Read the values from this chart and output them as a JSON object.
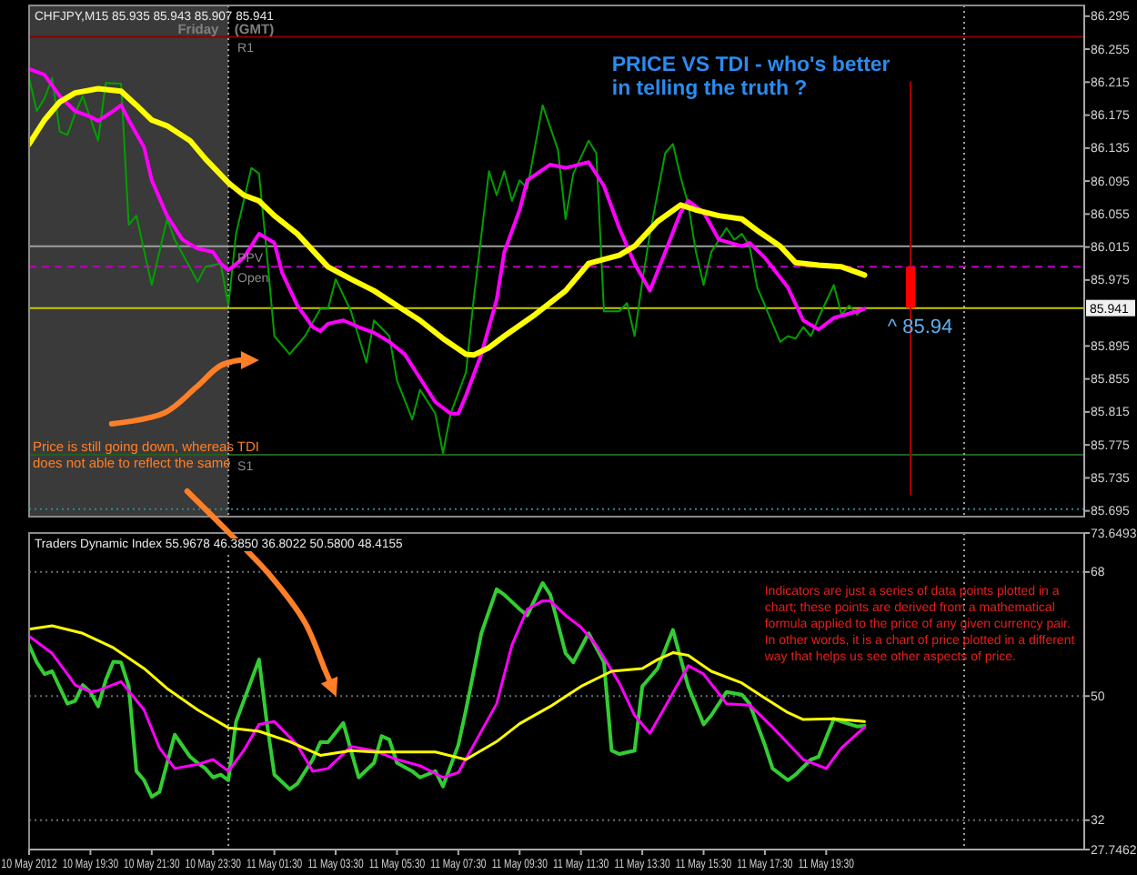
{
  "chart_data": [
    {
      "type": "line",
      "title": "CHFJPY,M15 85.935 85.943 85.907 85.941",
      "xlim": [
        "2012-05-10T17:30",
        "2012-05-12T03:55"
      ],
      "ylim": [
        85.688,
        86.308
      ],
      "yticks": [
        86.295,
        86.255,
        86.215,
        86.175,
        86.135,
        86.095,
        86.055,
        86.015,
        85.975,
        85.895,
        85.855,
        85.815,
        85.775,
        85.735,
        85.695
      ],
      "tick_labels": "y",
      "series": [
        {
          "color": "#00a000",
          "x": [
            "2012-05-10T17:30",
            "2012-05-10T17:45",
            "2012-05-10T18:00",
            "2012-05-10T18:15",
            "2012-05-10T18:30",
            "2012-05-10T18:45",
            "2012-05-10T19:00",
            "2012-05-10T19:15",
            "2012-05-10T19:45",
            "2012-05-10T20:00",
            "2012-05-10T20:30",
            "2012-05-10T20:45",
            "2012-05-10T21:00",
            "2012-05-10T21:30",
            "2012-05-10T22:00",
            "2012-05-10T22:15",
            "2012-05-10T23:00",
            "2012-05-10T23:15",
            "2012-05-10T23:45",
            "2012-05-11T00:00",
            "2012-05-11T00:15",
            "2012-05-11T00:45",
            "2012-05-11T01:00",
            "2012-05-11T01:15",
            "2012-05-11T01:30",
            "2012-05-11T02:00",
            "2012-05-11T02:30",
            "2012-05-11T03:00",
            "2012-05-11T03:15",
            "2012-05-11T03:30",
            "2012-05-11T04:00",
            "2012-05-11T04:30",
            "2012-05-11T04:45",
            "2012-05-11T05:15",
            "2012-05-11T05:30",
            "2012-05-11T06:00",
            "2012-05-11T06:15",
            "2012-05-11T06:45",
            "2012-05-11T07:00",
            "2012-05-11T07:15",
            "2012-05-11T07:45",
            "2012-05-11T08:00",
            "2012-05-11T08:30",
            "2012-05-11T08:45",
            "2012-05-11T09:00",
            "2012-05-11T09:15",
            "2012-05-11T09:30",
            "2012-05-11T09:45",
            "2012-05-11T10:15",
            "2012-05-11T10:45",
            "2012-05-11T11:00",
            "2012-05-11T11:15",
            "2012-05-11T11:45",
            "2012-05-11T12:00",
            "2012-05-11T12:15",
            "2012-05-11T12:45",
            "2012-05-11T13:00",
            "2012-05-11T13:15",
            "2012-05-11T13:30",
            "2012-05-11T13:45",
            "2012-05-11T14:15",
            "2012-05-11T14:30",
            "2012-05-11T14:45",
            "2012-05-11T15:00",
            "2012-05-11T15:15",
            "2012-05-11T15:30",
            "2012-05-11T15:45",
            "2012-05-11T16:15",
            "2012-05-11T16:30",
            "2012-05-11T16:45",
            "2012-05-11T17:00",
            "2012-05-11T17:15",
            "2012-05-11T17:30",
            "2012-05-11T18:00",
            "2012-05-11T18:15",
            "2012-05-11T18:30",
            "2012-05-11T18:45",
            "2012-05-11T19:00",
            "2012-05-11T19:15",
            "2012-05-11T19:45",
            "2012-05-11T20:00",
            "2012-05-11T20:15",
            "2012-05-11T20:30",
            "2012-05-11T20:45"
          ],
          "values": [
            86.22,
            86.18,
            86.195,
            86.22,
            86.155,
            86.151,
            86.177,
            86.198,
            86.144,
            86.214,
            86.213,
            86.042,
            86.053,
            85.969,
            86.049,
            86.024,
            85.973,
            85.991,
            85.995,
            85.944,
            86.031,
            86.111,
            86.104,
            86.009,
            85.907,
            85.885,
            85.907,
            85.94,
            85.94,
            85.976,
            85.937,
            85.875,
            85.926,
            85.907,
            85.853,
            85.806,
            85.842,
            85.813,
            85.765,
            85.813,
            85.863,
            85.951,
            86.107,
            86.078,
            86.107,
            86.071,
            86.096,
            86.086,
            86.187,
            86.133,
            86.049,
            86.104,
            86.144,
            86.129,
            85.937,
            85.937,
            85.947,
            85.907,
            85.973,
            86.031,
            86.129,
            86.14,
            86.1,
            86.067,
            86.009,
            85.969,
            86.009,
            86.038,
            86.024,
            86.031,
            86.016,
            85.966,
            85.944,
            85.9,
            85.907,
            85.904,
            85.918,
            85.907,
            85.929,
            85.969,
            85.933,
            85.944,
            85.933,
            85.941
          ]
        },
        {
          "color": "#ff00ff",
          "x": [
            "2012-05-10T17:30",
            "2012-05-10T18:00",
            "2012-05-10T18:30",
            "2012-05-10T19:00",
            "2012-05-10T19:30",
            "2012-05-10T19:45",
            "2012-05-10T20:15",
            "2012-05-10T20:30",
            "2012-05-10T20:45",
            "2012-05-10T21:15",
            "2012-05-10T21:30",
            "2012-05-10T22:00",
            "2012-05-10T22:30",
            "2012-05-10T23:00",
            "2012-05-10T23:30",
            "2012-05-10T23:45",
            "2012-05-11T00:00",
            "2012-05-11T00:30",
            "2012-05-11T01:00",
            "2012-05-11T01:30",
            "2012-05-11T01:45",
            "2012-05-11T02:15",
            "2012-05-11T02:45",
            "2012-05-11T03:00",
            "2012-05-11T03:15",
            "2012-05-11T03:45",
            "2012-05-11T04:15",
            "2012-05-11T04:45",
            "2012-05-11T05:15",
            "2012-05-11T05:45",
            "2012-05-11T06:15",
            "2012-05-11T06:45",
            "2012-05-11T07:15",
            "2012-05-11T07:30",
            "2012-05-11T07:45",
            "2012-05-11T08:15",
            "2012-05-11T08:45",
            "2012-05-11T09:00",
            "2012-05-11T09:30",
            "2012-05-11T09:45",
            "2012-05-11T10:30",
            "2012-05-11T11:00",
            "2012-05-11T11:45",
            "2012-05-11T12:15",
            "2012-05-11T12:45",
            "2012-05-11T13:15",
            "2012-05-11T13:45",
            "2012-05-11T14:15",
            "2012-05-11T14:45",
            "2012-05-11T15:00",
            "2012-05-11T15:30",
            "2012-05-11T16:00",
            "2012-05-11T16:45",
            "2012-05-11T17:00",
            "2012-05-11T17:30",
            "2012-05-11T18:15",
            "2012-05-11T18:45",
            "2012-05-11T19:15",
            "2012-05-11T19:45",
            "2012-05-11T20:30",
            "2012-05-11T20:45"
          ],
          "values": [
            86.231,
            86.224,
            86.198,
            86.18,
            86.173,
            86.168,
            86.18,
            86.187,
            86.169,
            86.136,
            86.096,
            86.053,
            86.024,
            86.013,
            86.009,
            85.995,
            85.987,
            86.002,
            86.031,
            86.02,
            85.984,
            85.944,
            85.918,
            85.913,
            85.922,
            85.926,
            85.918,
            85.911,
            85.9,
            85.885,
            85.856,
            85.827,
            85.813,
            85.813,
            85.835,
            85.885,
            85.951,
            86.009,
            86.06,
            86.096,
            86.115,
            86.111,
            86.118,
            86.089,
            86.038,
            85.995,
            85.962,
            86.009,
            86.057,
            86.071,
            86.057,
            86.024,
            86.016,
            86.02,
            86.002,
            85.966,
            85.926,
            85.915,
            85.929,
            85.937,
            85.94
          ]
        },
        {
          "color": "#ffff00",
          "x": [
            "2012-05-10T17:30",
            "2012-05-10T18:00",
            "2012-05-10T18:30",
            "2012-05-10T19:00",
            "2012-05-10T19:45",
            "2012-05-10T20:30",
            "2012-05-10T21:00",
            "2012-05-10T21:30",
            "2012-05-10T22:00",
            "2012-05-10T22:45",
            "2012-05-10T23:15",
            "2012-05-11T00:00",
            "2012-05-11T00:30",
            "2012-05-11T01:00",
            "2012-05-11T01:30",
            "2012-05-11T02:15",
            "2012-05-11T03:15",
            "2012-05-11T04:00",
            "2012-05-11T04:45",
            "2012-05-11T05:30",
            "2012-05-11T06:15",
            "2012-05-11T07:00",
            "2012-05-11T07:45",
            "2012-05-11T08:00",
            "2012-05-11T08:30",
            "2012-05-11T09:00",
            "2012-05-11T10:00",
            "2012-05-11T11:00",
            "2012-05-11T11:45",
            "2012-05-11T12:45",
            "2012-05-11T13:15",
            "2012-05-11T14:00",
            "2012-05-11T14:45",
            "2012-05-11T15:15",
            "2012-05-11T16:00",
            "2012-05-11T16:45",
            "2012-05-11T17:15",
            "2012-05-11T18:00",
            "2012-05-11T18:30",
            "2012-05-11T19:15",
            "2012-05-11T20:00",
            "2012-05-11T20:45"
          ],
          "values": [
            86.14,
            86.169,
            86.191,
            86.202,
            86.207,
            86.204,
            86.187,
            86.169,
            86.162,
            86.144,
            86.122,
            86.093,
            86.078,
            86.071,
            86.053,
            86.031,
            85.991,
            85.976,
            85.962,
            85.944,
            85.926,
            85.904,
            85.885,
            85.884,
            85.893,
            85.907,
            85.933,
            85.962,
            85.995,
            86.005,
            86.016,
            86.046,
            86.066,
            86.06,
            86.053,
            86.049,
            86.035,
            86.016,
            85.996,
            85.993,
            85.991,
            85.981
          ]
        },
        {
          "type": "candlestick",
          "color": "#ff0000",
          "x": [
            "2012-05-11T22:15"
          ],
          "ohlc": [
            [
              85.991,
              86.216,
              85.714,
              85.941
            ]
          ]
        }
      ],
      "ref_lines": [
        {
          "axis": "y",
          "value": 86.27,
          "label": "R1",
          "color": "#8b0000"
        },
        {
          "axis": "y",
          "value": 86.016,
          "label": "PPV",
          "color": "#a0a0a0"
        },
        {
          "axis": "y",
          "value": 85.991,
          "label": "Open",
          "color": "#c000c0",
          "line_style": "dashed"
        },
        {
          "axis": "y",
          "value": 85.941,
          "label": "85.941",
          "color": "#c8c800"
        },
        {
          "axis": "y",
          "value": 85.763,
          "label": "S1",
          "color": "#1f5f1f"
        },
        {
          "axis": "y",
          "value": 85.697,
          "color": "#2e8b8b",
          "line_style": "dotted"
        },
        {
          "axis": "x",
          "value": "2012-05-11T00:00",
          "color": "#a0a0a0",
          "line_style": "dotted"
        },
        {
          "axis": "x",
          "value": "2012-05-12T00:00",
          "color": "#a0a0a0",
          "line_style": "dotted"
        }
      ],
      "bands": [
        {
          "axis": "x",
          "from": "2012-05-10T17:30",
          "to": "2012-05-11T00:00",
          "color": "#3a3a3a"
        }
      ],
      "annotations": [
        "Friday",
        "(GMT)",
        "PRICE VS TDI - who's better in telling the truth ?",
        {
          "text": "^ 85.94",
          "x": "2012-05-11T21:30",
          "y": 85.94
        },
        "Price is still going down, whereas TDI",
        "does not able to reflect the same"
      ]
    },
    {
      "type": "line",
      "title": "Traders Dynamic Index 55.9678 46.3850 36.8022 50.5800 48.4155",
      "xlim": [
        "2012-05-10T17:30",
        "2012-05-12T03:55"
      ],
      "xticks": [
        {
          "value": "2012-05-10T17:30",
          "label": "10 May 2012"
        },
        {
          "value": "2012-05-10T19:30",
          "label": "10 May 19:30"
        },
        {
          "value": "2012-05-10T21:30",
          "label": "10 May 21:30"
        },
        {
          "value": "2012-05-10T23:30",
          "label": "10 May 23:30"
        },
        {
          "value": "2012-05-11T01:30",
          "label": "11 May 01:30"
        },
        {
          "value": "2012-05-11T03:30",
          "label": "11 May 03:30"
        },
        {
          "value": "2012-05-11T05:30",
          "label": "11 May 05:30"
        },
        {
          "value": "2012-05-11T07:30",
          "label": "11 May 07:30"
        },
        {
          "value": "2012-05-11T09:30",
          "label": "11 May 09:30"
        },
        {
          "value": "2012-05-11T11:30",
          "label": "11 May 11:30"
        },
        {
          "value": "2012-05-11T13:30",
          "label": "11 May 13:30"
        },
        {
          "value": "2012-05-11T15:30",
          "label": "11 May 15:30"
        },
        {
          "value": "2012-05-11T17:30",
          "label": "11 May 17:30"
        },
        {
          "value": "2012-05-11T19:30",
          "label": "11 May 19:30"
        }
      ],
      "ylim": [
        27.7462,
        73.6493
      ],
      "yticks": [
        73.6493,
        68,
        50,
        32,
        27.7462
      ],
      "series": [
        {
          "color": "#32cd32",
          "x": [
            "2012-05-10T17:30",
            "2012-05-10T17:45",
            "2012-05-10T18:00",
            "2012-05-10T18:15",
            "2012-05-10T18:45",
            "2012-05-10T19:00",
            "2012-05-10T19:15",
            "2012-05-10T19:30",
            "2012-05-10T19:45",
            "2012-05-10T20:00",
            "2012-05-10T20:15",
            "2012-05-10T20:30",
            "2012-05-10T20:45",
            "2012-05-10T21:00",
            "2012-05-10T21:15",
            "2012-05-10T21:30",
            "2012-05-10T21:45",
            "2012-05-10T22:15",
            "2012-05-10T22:45",
            "2012-05-10T23:00",
            "2012-05-10T23:15",
            "2012-05-10T23:30",
            "2012-05-10T23:45",
            "2012-05-11T00:00",
            "2012-05-11T00:15",
            "2012-05-11T00:45",
            "2012-05-11T01:00",
            "2012-05-11T01:15",
            "2012-05-11T01:30",
            "2012-05-11T02:00",
            "2012-05-11T02:15",
            "2012-05-11T02:45",
            "2012-05-11T03:00",
            "2012-05-11T03:15",
            "2012-05-11T03:45",
            "2012-05-11T04:00",
            "2012-05-11T04:15",
            "2012-05-11T04:45",
            "2012-05-11T05:00",
            "2012-05-11T05:15",
            "2012-05-11T05:30",
            "2012-05-11T06:00",
            "2012-05-11T06:15",
            "2012-05-11T06:45",
            "2012-05-11T07:00",
            "2012-05-11T07:30",
            "2012-05-11T07:45",
            "2012-05-11T08:15",
            "2012-05-11T08:45",
            "2012-05-11T09:00",
            "2012-05-11T09:30",
            "2012-05-11T09:45",
            "2012-05-11T10:15",
            "2012-05-11T10:30",
            "2012-05-11T11:00",
            "2012-05-11T11:15",
            "2012-05-11T11:30",
            "2012-05-11T11:45",
            "2012-05-11T12:15",
            "2012-05-11T12:30",
            "2012-05-11T12:45",
            "2012-05-11T13:15",
            "2012-05-11T13:30",
            "2012-05-11T14:00",
            "2012-05-11T14:30",
            "2012-05-11T15:00",
            "2012-05-11T15:30",
            "2012-05-11T15:45",
            "2012-05-11T16:15",
            "2012-05-11T16:45",
            "2012-05-11T17:00",
            "2012-05-11T17:30",
            "2012-05-11T17:45",
            "2012-05-11T18:15",
            "2012-05-11T18:30",
            "2012-05-11T19:00",
            "2012-05-11T19:15",
            "2012-05-11T19:45",
            "2012-05-11T20:00",
            "2012-05-11T20:30",
            "2012-05-11T20:45"
          ],
          "values": [
            57.4,
            54.9,
            53.2,
            53.6,
            48.9,
            49.3,
            51.6,
            50.6,
            48.5,
            52.3,
            55.0,
            54.9,
            51.4,
            39.1,
            37.8,
            35.4,
            36.1,
            44.4,
            41.2,
            40.3,
            39.5,
            38.2,
            38.6,
            37.8,
            46.3,
            52.3,
            55.3,
            46.3,
            38.6,
            36.5,
            37.3,
            40.8,
            43.3,
            43.3,
            46.1,
            42.1,
            38.2,
            40.3,
            44.2,
            43.7,
            40.3,
            39.1,
            38.2,
            39.1,
            36.9,
            42.9,
            48.0,
            59.1,
            65.5,
            64.7,
            62.6,
            61.7,
            66.4,
            64.7,
            56.2,
            54.9,
            57.0,
            59.1,
            54.9,
            42.1,
            41.6,
            42.1,
            51.4,
            54.0,
            59.6,
            51.4,
            45.9,
            47.2,
            50.6,
            50.2,
            48.9,
            42.9,
            39.5,
            37.8,
            38.6,
            40.8,
            41.2,
            46.7,
            46.3,
            45.6,
            45.7
          ]
        },
        {
          "color": "#ff00ff",
          "x": [
            "2012-05-10T17:30",
            "2012-05-10T18:15",
            "2012-05-10T18:45",
            "2012-05-10T19:00",
            "2012-05-10T19:30",
            "2012-05-10T19:45",
            "2012-05-10T20:30",
            "2012-05-10T21:15",
            "2012-05-10T21:45",
            "2012-05-10T22:15",
            "2012-05-10T23:00",
            "2012-05-10T23:30",
            "2012-05-11T00:00",
            "2012-05-11T00:30",
            "2012-05-11T01:00",
            "2012-05-11T01:30",
            "2012-05-11T02:15",
            "2012-05-11T02:45",
            "2012-05-11T03:15",
            "2012-05-11T04:00",
            "2012-05-11T04:45",
            "2012-05-11T05:30",
            "2012-05-11T06:15",
            "2012-05-11T07:00",
            "2012-05-11T07:30",
            "2012-05-11T08:00",
            "2012-05-11T08:45",
            "2012-05-11T09:15",
            "2012-05-11T09:45",
            "2012-05-11T10:15",
            "2012-05-11T10:30",
            "2012-05-11T11:00",
            "2012-05-11T11:30",
            "2012-05-11T12:00",
            "2012-05-11T12:45",
            "2012-05-11T13:15",
            "2012-05-11T13:45",
            "2012-05-11T14:15",
            "2012-05-11T15:00",
            "2012-05-11T15:30",
            "2012-05-11T16:15",
            "2012-05-11T17:00",
            "2012-05-11T17:45",
            "2012-05-11T18:45",
            "2012-05-11T19:30",
            "2012-05-11T20:00",
            "2012-05-11T20:45"
          ],
          "values": [
            58.7,
            56.2,
            53.2,
            51.6,
            50.6,
            50.8,
            52.1,
            48.0,
            42.5,
            39.5,
            40.1,
            40.8,
            39.1,
            42.1,
            45.9,
            46.3,
            42.9,
            39.1,
            39.5,
            42.7,
            42.1,
            40.8,
            39.9,
            38.2,
            38.9,
            42.9,
            48.9,
            57.4,
            62.6,
            63.8,
            63.8,
            61.7,
            60.0,
            57.4,
            51.9,
            47.2,
            44.6,
            48.5,
            54.4,
            53.2,
            48.9,
            48.7,
            45.5,
            40.8,
            39.5,
            42.5,
            45.5
          ]
        },
        {
          "color": "#ffff00",
          "x": [
            "2012-05-10T17:30",
            "2012-05-10T18:15",
            "2012-05-10T19:15",
            "2012-05-10T20:15",
            "2012-05-10T21:15",
            "2012-05-10T22:00",
            "2012-05-10T23:00",
            "2012-05-11T00:00",
            "2012-05-11T01:00",
            "2012-05-11T02:00",
            "2012-05-11T03:00",
            "2012-05-11T04:00",
            "2012-05-11T04:45",
            "2012-05-11T06:45",
            "2012-05-11T07:45",
            "2012-05-11T08:45",
            "2012-05-11T09:30",
            "2012-05-11T10:30",
            "2012-05-11T11:30",
            "2012-05-11T12:30",
            "2012-05-11T13:30",
            "2012-05-11T14:00",
            "2012-05-11T14:30",
            "2012-05-11T15:00",
            "2012-05-11T15:45",
            "2012-05-11T16:45",
            "2012-05-11T17:30",
            "2012-05-11T18:15",
            "2012-05-11T18:45",
            "2012-05-11T19:45",
            "2012-05-11T20:45"
          ],
          "values": [
            59.7,
            60.2,
            59.1,
            57.0,
            54.0,
            51.1,
            48.0,
            45.4,
            44.9,
            43.4,
            41.4,
            42.1,
            41.9,
            41.9,
            40.8,
            43.4,
            46.0,
            48.5,
            51.4,
            53.6,
            54.0,
            55.3,
            56.3,
            55.9,
            53.6,
            51.9,
            49.7,
            47.6,
            46.6,
            46.7,
            46.3
          ]
        }
      ],
      "ref_lines": [
        {
          "axis": "y",
          "value": 68,
          "color": "#607070",
          "line_style": "dotted"
        },
        {
          "axis": "y",
          "value": 50,
          "color": "#607070",
          "line_style": "dotted"
        },
        {
          "axis": "y",
          "value": 32,
          "color": "#607070",
          "line_style": "dotted"
        },
        {
          "axis": "x",
          "value": "2012-05-11T00:00",
          "color": "#a0a0a0",
          "line_style": "dotted"
        },
        {
          "axis": "x",
          "value": "2012-05-12T00:00",
          "color": "#a0a0a0",
          "line_style": "dotted"
        }
      ],
      "annotations": [
        "Indicators are just a series of data points plotted in a chart; these points are derived from a mathematical formula applied to the price of any given currency pair. In other words, it is a chart of price plotted in a different way that helps us see other aspects of price."
      ]
    }
  ]
}
